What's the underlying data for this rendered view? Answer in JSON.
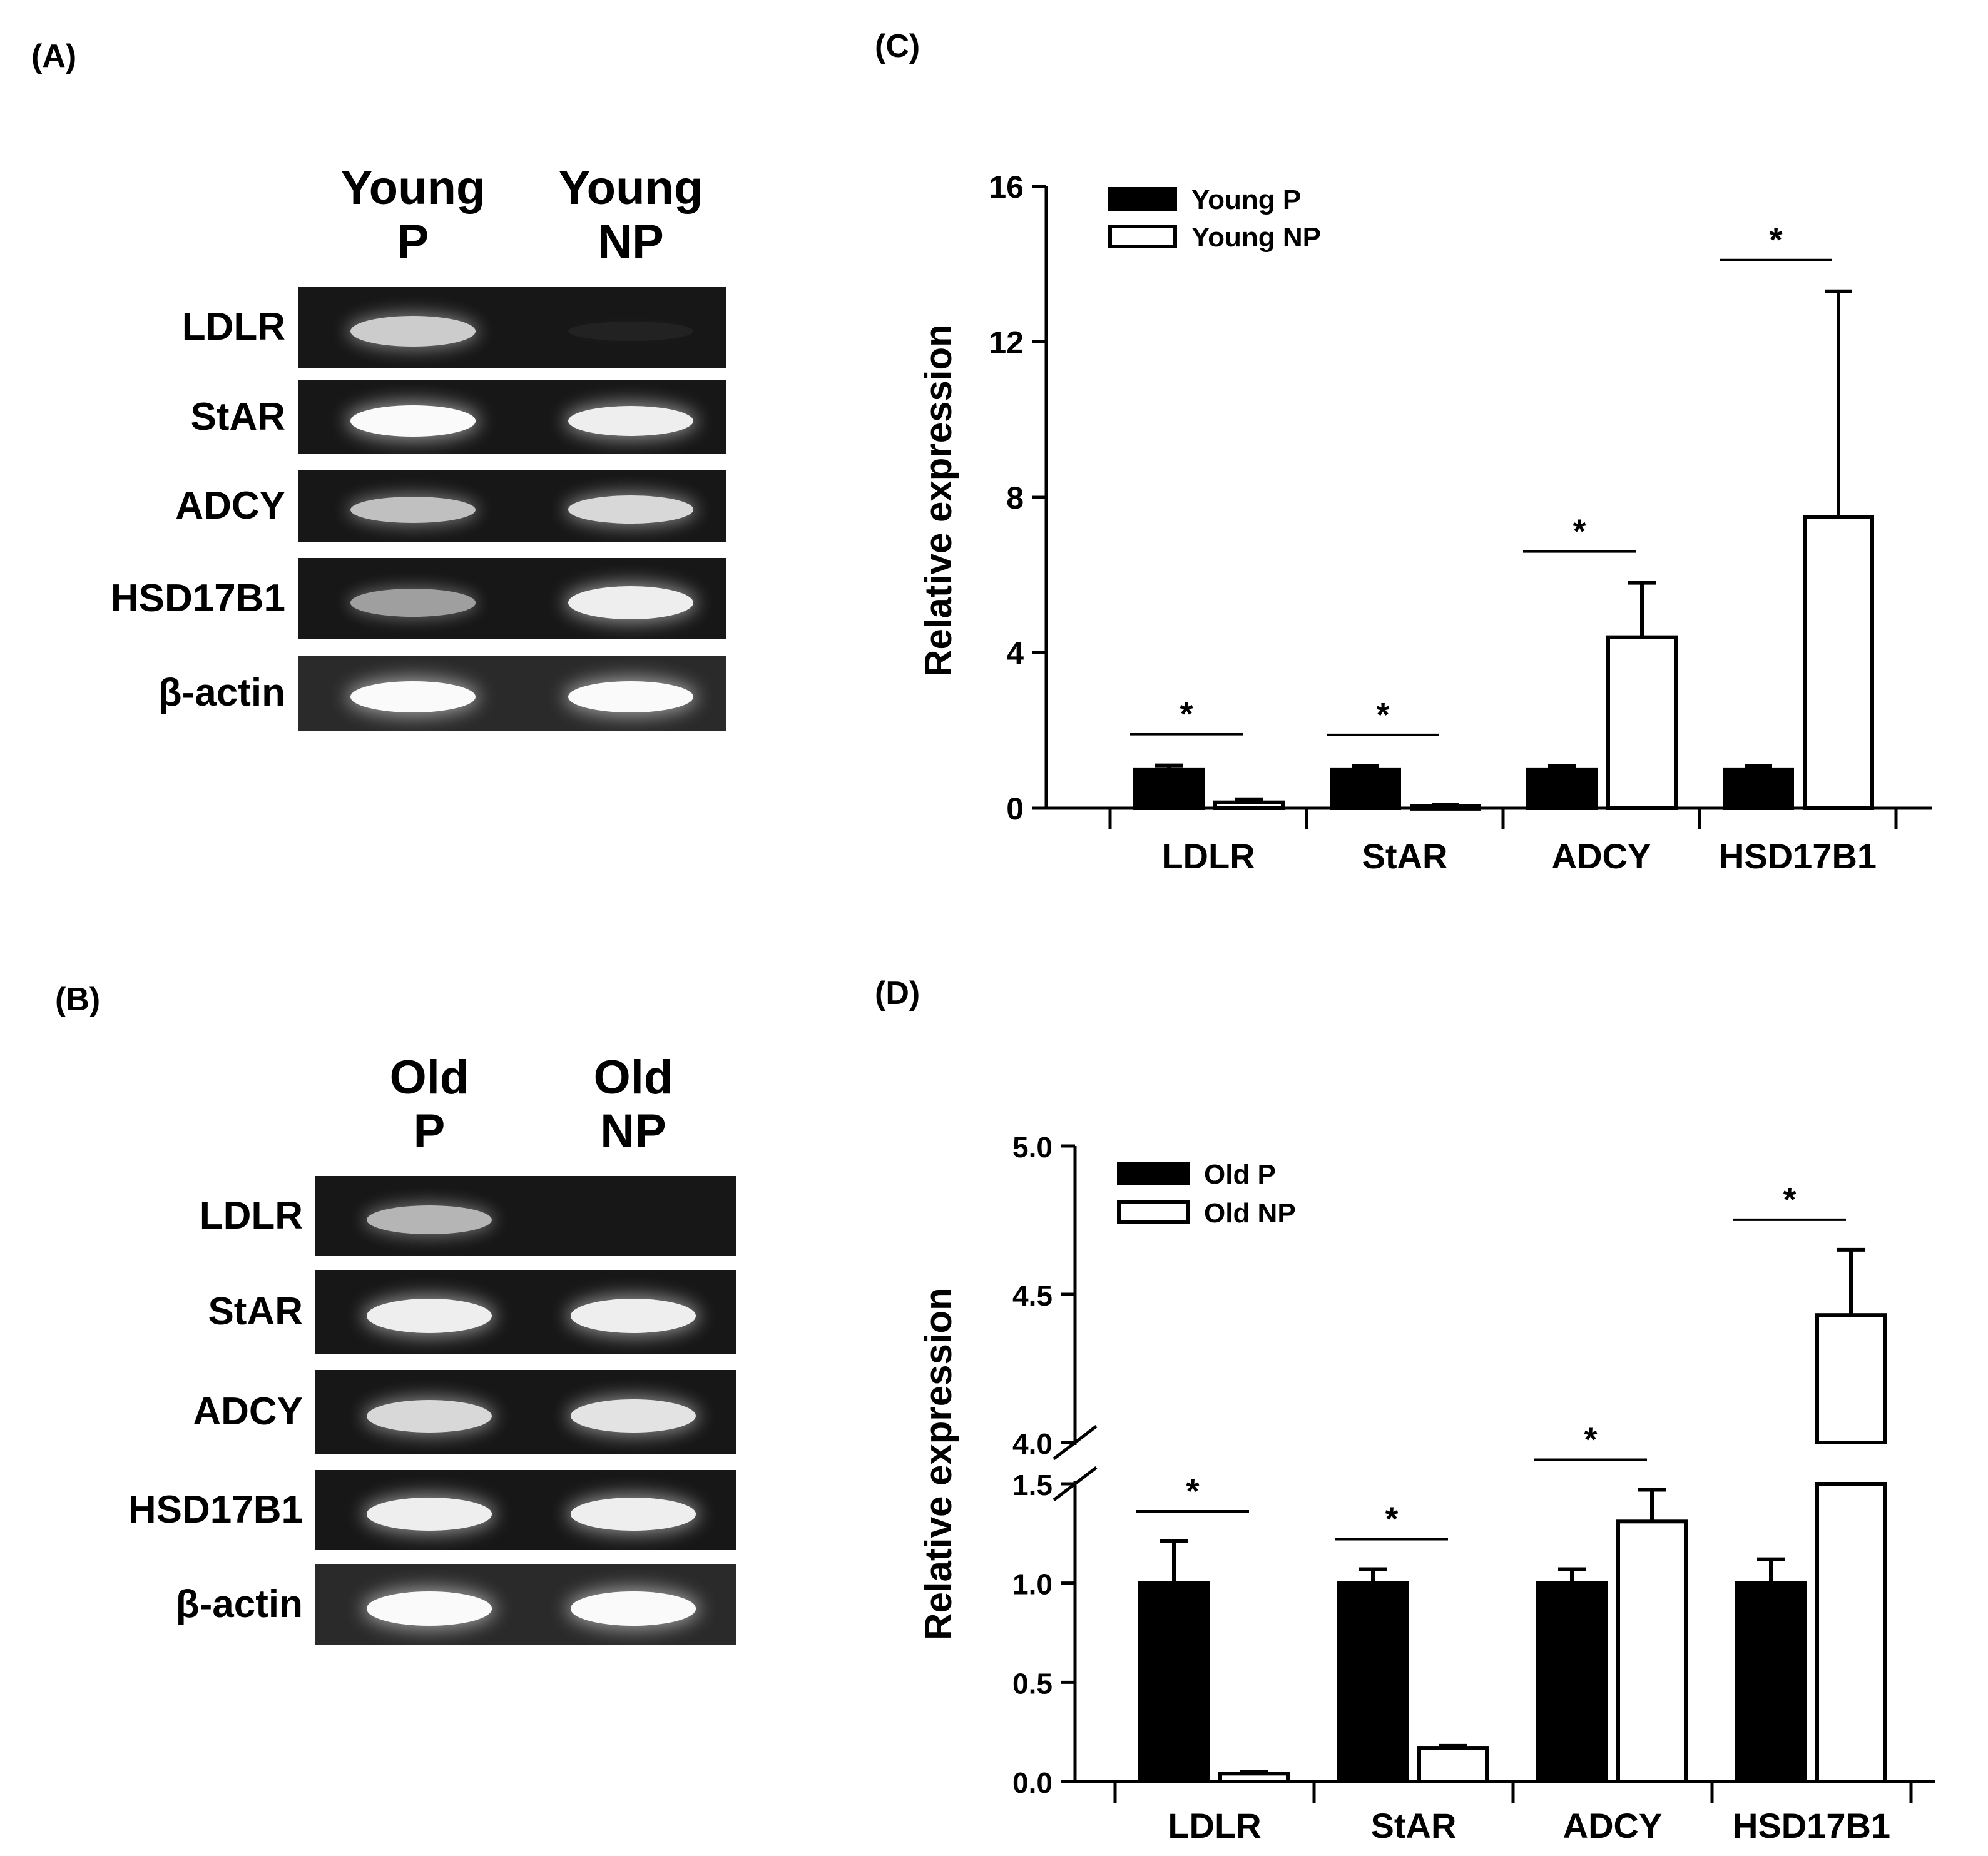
{
  "panels": {
    "a": "(A)",
    "b": "(B)",
    "c": "(C)",
    "d": "(D)"
  },
  "gel_a": {
    "lanes": [
      {
        "top": "Young",
        "bottom": "P"
      },
      {
        "top": "Young",
        "bottom": "NP"
      }
    ],
    "rows": [
      {
        "label": "LDLR",
        "intensity": [
          0.8,
          0.05
        ]
      },
      {
        "label": "StAR",
        "intensity": [
          1.0,
          0.95
        ]
      },
      {
        "label": "ADCY",
        "intensity": [
          0.75,
          0.85
        ]
      },
      {
        "label": "HSD17B1",
        "intensity": [
          0.6,
          0.95
        ]
      },
      {
        "label": "β-actin",
        "intensity": [
          1.0,
          1.0
        ]
      }
    ]
  },
  "gel_b": {
    "lanes": [
      {
        "top": "Old",
        "bottom": "P"
      },
      {
        "top": "Old",
        "bottom": "NP"
      }
    ],
    "rows": [
      {
        "label": "LDLR",
        "intensity": [
          0.7,
          0.0
        ]
      },
      {
        "label": "StAR",
        "intensity": [
          0.95,
          0.95
        ]
      },
      {
        "label": "ADCY",
        "intensity": [
          0.85,
          0.9
        ]
      },
      {
        "label": "HSD17B1",
        "intensity": [
          0.95,
          0.95
        ]
      },
      {
        "label": "β-actin",
        "intensity": [
          1.0,
          1.0
        ]
      }
    ]
  },
  "colors": {
    "p_fill": "#000000",
    "np_fill": "#ffffff",
    "band": "#f4f4f4",
    "gel_bg": "#171717"
  },
  "chart_data": [
    {
      "type": "bar",
      "panel": "C",
      "ylabel": "Relative expression",
      "xlabel": "",
      "ylim": [
        0,
        16
      ],
      "yticks": [
        "0",
        "4",
        "8",
        "12",
        "16"
      ],
      "categories": [
        "LDLR",
        "StAR",
        "ADCY",
        "HSD17B1"
      ],
      "series": [
        {
          "name": "Young P",
          "values": [
            1.0,
            1.0,
            1.0,
            1.0
          ],
          "errors": [
            0.1,
            0.08,
            0.08,
            0.08
          ]
        },
        {
          "name": "Young NP",
          "values": [
            0.15,
            0.05,
            4.4,
            7.5
          ],
          "errors": [
            0.08,
            0.03,
            1.4,
            5.8
          ]
        }
      ],
      "significance": [
        "*",
        "*",
        "*",
        "*"
      ],
      "legend": "top-left",
      "grid": false
    },
    {
      "type": "bar",
      "panel": "D",
      "ylabel": "Relative expression",
      "xlabel": "",
      "ylim": [
        0,
        5.0
      ],
      "axis_break": [
        1.5,
        4.0
      ],
      "yticks": [
        "0.0",
        "0.5",
        "1.0",
        "1.5",
        "4.0",
        "4.5",
        "5.0"
      ],
      "categories": [
        "LDLR",
        "StAR",
        "ADCY",
        "HSD17B1"
      ],
      "series": [
        {
          "name": "Old P",
          "values": [
            1.0,
            1.0,
            1.0,
            1.0
          ],
          "errors": [
            0.21,
            0.07,
            0.07,
            0.12
          ]
        },
        {
          "name": "Old NP",
          "values": [
            0.04,
            0.17,
            1.31,
            4.43
          ],
          "errors": [
            0.01,
            0.01,
            0.16,
            0.22
          ]
        }
      ],
      "significance": [
        "*",
        "*",
        "*",
        "*"
      ],
      "legend": "top-left",
      "grid": false
    }
  ]
}
